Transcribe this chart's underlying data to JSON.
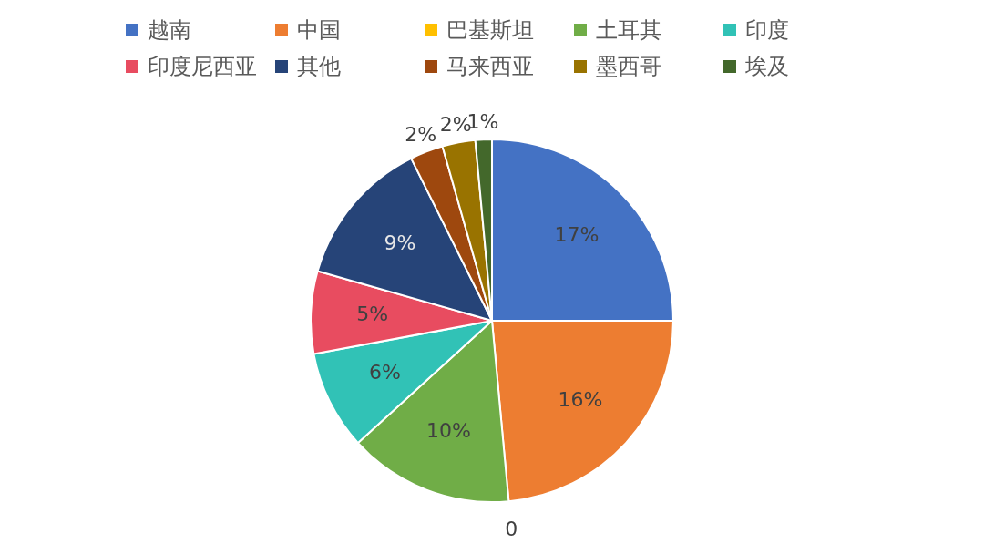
{
  "chart_data": {
    "type": "pie",
    "categories": [
      "越南",
      "中国",
      "巴基斯坦",
      "土耳其",
      "印度",
      "印度尼西亚",
      "其他",
      "马来西亚",
      "墨西哥",
      "埃及"
    ],
    "values": [
      17,
      16,
      0,
      10,
      6,
      5,
      9,
      2,
      2,
      1
    ],
    "value_labels": [
      "17%",
      "16%",
      "0",
      "10%",
      "6%",
      "5%",
      "9%",
      "2%",
      "2%",
      "1%"
    ],
    "colors": [
      "#4472c4",
      "#ed7d31",
      "#ffc000",
      "#70ad47",
      "#31c2b6",
      "#e84c60",
      "#264478",
      "#9e480e",
      "#997300",
      "#43682b"
    ],
    "legend": "top"
  }
}
